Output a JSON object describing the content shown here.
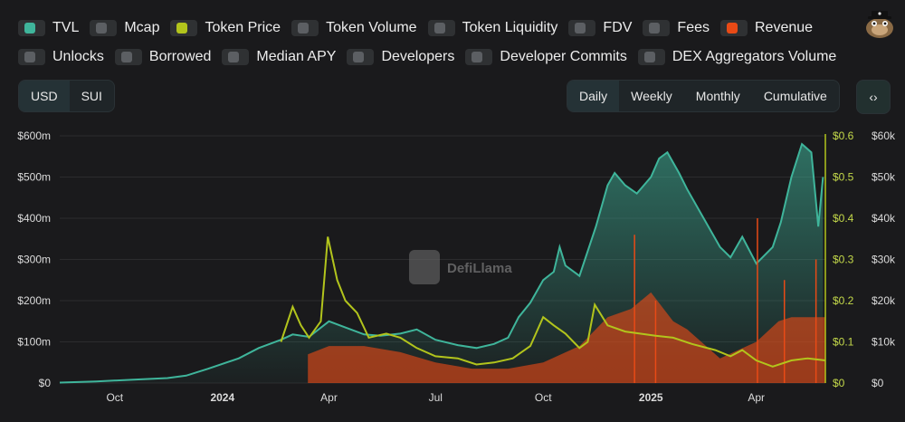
{
  "toggles": {
    "row1": [
      {
        "id": "tvl",
        "label": "TVL",
        "on": true,
        "color": "#3fb59b"
      },
      {
        "id": "mcap",
        "label": "Mcap",
        "on": false
      },
      {
        "id": "token-price",
        "label": "Token Price",
        "on": true,
        "color": "#b2c41c"
      },
      {
        "id": "token-volume",
        "label": "Token Volume",
        "on": false
      },
      {
        "id": "token-liquidity",
        "label": "Token Liquidity",
        "on": false
      },
      {
        "id": "fdv",
        "label": "FDV",
        "on": false
      },
      {
        "id": "fees",
        "label": "Fees",
        "on": false
      },
      {
        "id": "revenue",
        "label": "Revenue",
        "on": true,
        "color": "#e84a16"
      }
    ],
    "row2": [
      {
        "id": "unlocks",
        "label": "Unlocks",
        "on": false
      },
      {
        "id": "borrowed",
        "label": "Borrowed",
        "on": false
      },
      {
        "id": "median-apy",
        "label": "Median APY",
        "on": false
      },
      {
        "id": "developers",
        "label": "Developers",
        "on": false
      },
      {
        "id": "developer-commits",
        "label": "Developer Commits",
        "on": false
      },
      {
        "id": "dex-aggregators-volume",
        "label": "DEX Aggregators Volume",
        "on": false
      }
    ]
  },
  "currency": {
    "options": [
      "USD",
      "SUI"
    ],
    "selected": "USD"
  },
  "periods": {
    "options": [
      "Daily",
      "Weekly",
      "Monthly",
      "Cumulative"
    ],
    "selected": "Daily"
  },
  "embed_icon": "code-icon",
  "embed_glyph": "‹›",
  "mascot_icon": "defillama-mascot-icon",
  "watermark": "DefiLlama",
  "colors": {
    "tvl": "#3fb59b",
    "price": "#b2c41c",
    "revenue": "#e84a16",
    "grid": "#2c2c2e"
  },
  "chart_data": {
    "type": "line",
    "x_ticks": [
      {
        "label": "Oct",
        "date": "2023-10-01"
      },
      {
        "label": "2024",
        "date": "2024-01-01",
        "bold": true
      },
      {
        "label": "Apr",
        "date": "2024-04-01"
      },
      {
        "label": "Jul",
        "date": "2024-07-01"
      },
      {
        "label": "Oct",
        "date": "2024-10-01"
      },
      {
        "label": "2025",
        "date": "2025-01-01",
        "bold": true
      },
      {
        "label": "Apr",
        "date": "2025-04-01"
      }
    ],
    "x_range": [
      "2023-08-15",
      "2025-05-30"
    ],
    "axes": {
      "left": {
        "label": "",
        "ticks": [
          "$0",
          "$100m",
          "$200m",
          "$300m",
          "$400m",
          "$500m",
          "$600m"
        ],
        "range": [
          0,
          600
        ]
      },
      "right1": {
        "label": "",
        "ticks": [
          "$0",
          "$0.1",
          "$0.2",
          "$0.3",
          "$0.4",
          "$0.5",
          "$0.6"
        ],
        "range": [
          0,
          0.6
        ]
      },
      "right2": {
        "label": "",
        "ticks": [
          "$0",
          "$10k",
          "$20k",
          "$30k",
          "$40k",
          "$50k",
          "$60k"
        ],
        "range": [
          0,
          60000
        ]
      }
    },
    "grid": true,
    "series": [
      {
        "name": "TVL",
        "axis": "left",
        "style": "area",
        "color": "#3fb59b",
        "points": [
          [
            "2023-08-15",
            1
          ],
          [
            "2023-09-15",
            4
          ],
          [
            "2023-10-15",
            8
          ],
          [
            "2023-11-15",
            12
          ],
          [
            "2023-12-01",
            18
          ],
          [
            "2023-12-20",
            35
          ],
          [
            "2024-01-15",
            60
          ],
          [
            "2024-02-01",
            85
          ],
          [
            "2024-02-20",
            105
          ],
          [
            "2024-03-01",
            118
          ],
          [
            "2024-03-15",
            112
          ],
          [
            "2024-04-01",
            150
          ],
          [
            "2024-04-15",
            135
          ],
          [
            "2024-05-01",
            118
          ],
          [
            "2024-05-15",
            115
          ],
          [
            "2024-06-01",
            120
          ],
          [
            "2024-06-15",
            130
          ],
          [
            "2024-07-01",
            105
          ],
          [
            "2024-07-20",
            92
          ],
          [
            "2024-08-05",
            85
          ],
          [
            "2024-08-20",
            95
          ],
          [
            "2024-09-01",
            110
          ],
          [
            "2024-09-10",
            160
          ],
          [
            "2024-09-20",
            195
          ],
          [
            "2024-10-01",
            250
          ],
          [
            "2024-10-10",
            270
          ],
          [
            "2024-10-15",
            330
          ],
          [
            "2024-10-20",
            285
          ],
          [
            "2024-11-01",
            260
          ],
          [
            "2024-11-15",
            380
          ],
          [
            "2024-11-25",
            480
          ],
          [
            "2024-12-01",
            510
          ],
          [
            "2024-12-10",
            480
          ],
          [
            "2024-12-20",
            460
          ],
          [
            "2025-01-01",
            500
          ],
          [
            "2025-01-08",
            545
          ],
          [
            "2025-01-15",
            560
          ],
          [
            "2025-01-25",
            510
          ],
          [
            "2025-02-01",
            470
          ],
          [
            "2025-02-15",
            400
          ],
          [
            "2025-03-01",
            330
          ],
          [
            "2025-03-10",
            305
          ],
          [
            "2025-03-20",
            355
          ],
          [
            "2025-04-01",
            290
          ],
          [
            "2025-04-15",
            330
          ],
          [
            "2025-04-22",
            390
          ],
          [
            "2025-05-01",
            500
          ],
          [
            "2025-05-10",
            580
          ],
          [
            "2025-05-18",
            560
          ],
          [
            "2025-05-24",
            380
          ],
          [
            "2025-05-28",
            500
          ]
        ]
      },
      {
        "name": "Token Price",
        "axis": "right1",
        "style": "line",
        "color": "#b2c41c",
        "points": [
          [
            "2024-02-20",
            0.1
          ],
          [
            "2024-03-01",
            0.185
          ],
          [
            "2024-03-08",
            0.14
          ],
          [
            "2024-03-15",
            0.11
          ],
          [
            "2024-03-25",
            0.15
          ],
          [
            "2024-03-31",
            0.355
          ],
          [
            "2024-04-08",
            0.25
          ],
          [
            "2024-04-15",
            0.2
          ],
          [
            "2024-04-25",
            0.17
          ],
          [
            "2024-05-05",
            0.11
          ],
          [
            "2024-05-20",
            0.12
          ],
          [
            "2024-06-01",
            0.11
          ],
          [
            "2024-06-15",
            0.085
          ],
          [
            "2024-07-01",
            0.065
          ],
          [
            "2024-07-20",
            0.06
          ],
          [
            "2024-08-05",
            0.045
          ],
          [
            "2024-08-20",
            0.05
          ],
          [
            "2024-09-05",
            0.06
          ],
          [
            "2024-09-20",
            0.09
          ],
          [
            "2024-10-01",
            0.16
          ],
          [
            "2024-10-10",
            0.14
          ],
          [
            "2024-10-20",
            0.12
          ],
          [
            "2024-11-01",
            0.085
          ],
          [
            "2024-11-08",
            0.1
          ],
          [
            "2024-11-14",
            0.19
          ],
          [
            "2024-11-25",
            0.14
          ],
          [
            "2024-12-10",
            0.125
          ],
          [
            "2025-01-05",
            0.115
          ],
          [
            "2025-01-20",
            0.11
          ],
          [
            "2025-02-05",
            0.095
          ],
          [
            "2025-02-25",
            0.08
          ],
          [
            "2025-03-10",
            0.065
          ],
          [
            "2025-03-20",
            0.08
          ],
          [
            "2025-04-01",
            0.055
          ],
          [
            "2025-04-15",
            0.04
          ],
          [
            "2025-05-01",
            0.055
          ],
          [
            "2025-05-15",
            0.06
          ],
          [
            "2025-05-30",
            0.055
          ]
        ]
      },
      {
        "name": "Revenue",
        "axis": "right2",
        "style": "bars",
        "color": "#e84a16",
        "points": [
          [
            "2024-03-14",
            7000
          ],
          [
            "2024-04-01",
            9000
          ],
          [
            "2024-05-01",
            9000
          ],
          [
            "2024-06-01",
            7500
          ],
          [
            "2024-07-01",
            5000
          ],
          [
            "2024-08-01",
            3500
          ],
          [
            "2024-09-01",
            3500
          ],
          [
            "2024-10-01",
            5000
          ],
          [
            "2024-11-01",
            9000
          ],
          [
            "2024-11-25",
            16000
          ],
          [
            "2024-12-15",
            18000
          ],
          [
            "2025-01-01",
            22000
          ],
          [
            "2025-01-20",
            15000
          ],
          [
            "2025-02-01",
            13000
          ],
          [
            "2025-03-01",
            6000
          ],
          [
            "2025-04-01",
            10000
          ],
          [
            "2025-04-20",
            15000
          ],
          [
            "2025-05-01",
            16000
          ],
          [
            "2025-05-30",
            16000
          ]
        ],
        "spikes": [
          [
            "2024-12-18",
            36000
          ],
          [
            "2025-01-05",
            20000
          ],
          [
            "2025-04-02",
            40000
          ],
          [
            "2025-04-25",
            25000
          ],
          [
            "2025-05-22",
            30000
          ]
        ]
      }
    ]
  }
}
